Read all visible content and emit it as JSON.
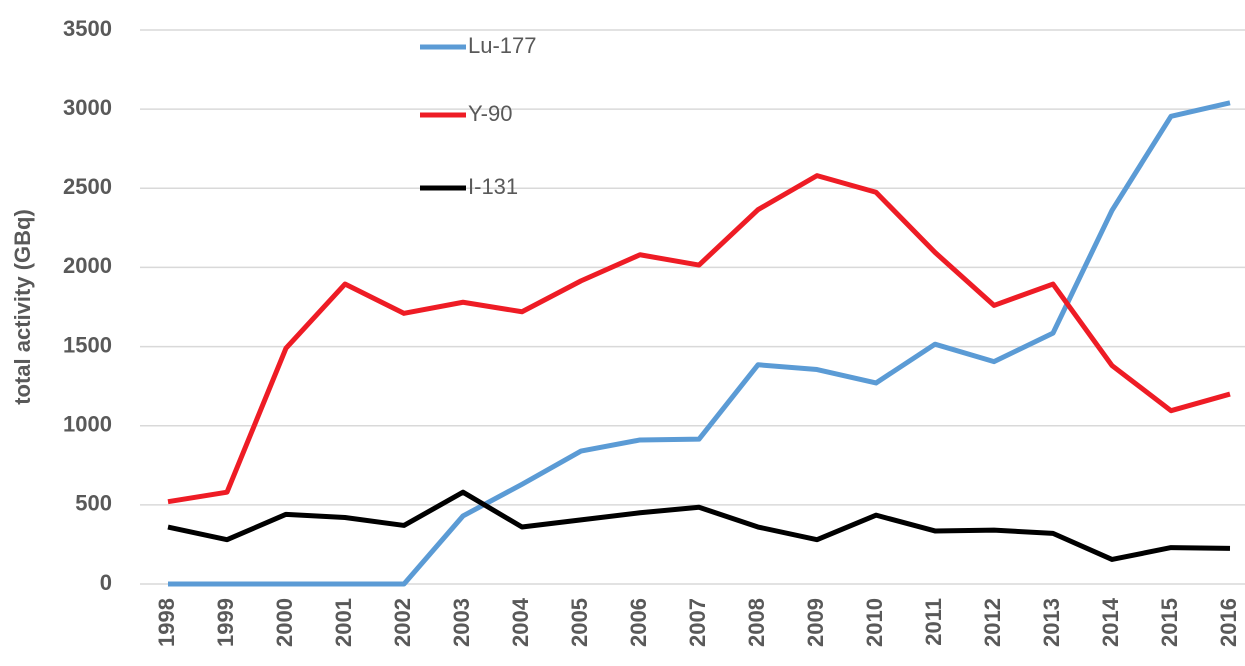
{
  "chart_data": {
    "type": "line",
    "y_label": "total activity (GBq)",
    "categories": [
      "1998",
      "1999",
      "2000",
      "2001",
      "2002",
      "2003",
      "2004",
      "2005",
      "2006",
      "2007",
      "2008",
      "2009",
      "2010",
      "2011",
      "2012",
      "2013",
      "2014",
      "2015",
      "2016"
    ],
    "series": [
      {
        "name": "Lu-177",
        "color": "#5b9bd5",
        "values": [
          0,
          0,
          0,
          0,
          0,
          430,
          630,
          840,
          910,
          915,
          1385,
          1355,
          1270,
          1515,
          1405,
          1585,
          2360,
          2955,
          3040
        ]
      },
      {
        "name": "Y-90",
        "color": "#ee1c25",
        "values": [
          520,
          580,
          1490,
          1895,
          1710,
          1780,
          1720,
          1915,
          2080,
          2015,
          2365,
          2580,
          2475,
          2095,
          1760,
          1895,
          1380,
          1095,
          1200
        ]
      },
      {
        "name": "I-131",
        "color": "#000000",
        "values": [
          360,
          280,
          440,
          420,
          370,
          580,
          360,
          405,
          450,
          485,
          360,
          280,
          435,
          335,
          340,
          320,
          155,
          230,
          225
        ]
      }
    ],
    "ylim": [
      0,
      3500
    ],
    "yticks": [
      0,
      500,
      1000,
      1500,
      2000,
      2500,
      3000,
      3500
    ],
    "grid": true
  }
}
